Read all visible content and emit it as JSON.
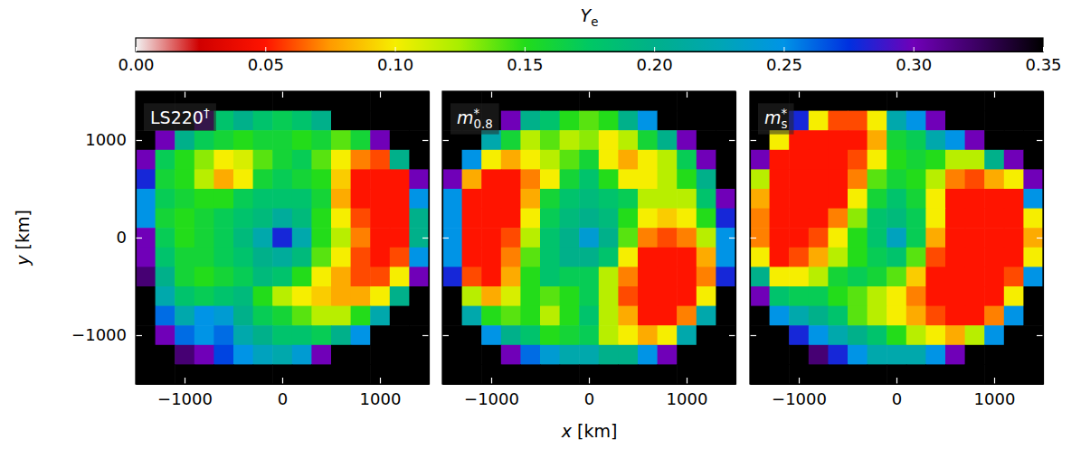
{
  "chart_data": {
    "type": "heatmap",
    "x_label": "x [km]",
    "y_label": "y [km]",
    "xlim": [
      -1500,
      1500
    ],
    "ylim": [
      -1500,
      1500
    ],
    "xticks": [
      {
        "value": -1000,
        "label": "−1000"
      },
      0,
      1000
    ],
    "yticks": [
      {
        "value": -1000,
        "label": "−1000"
      },
      0,
      1000
    ],
    "colorbar": {
      "label": {
        "text": "Y",
        "sub": "e"
      },
      "range": [
        0,
        0.35
      ],
      "ticks": [
        {
          "value": 0,
          "label": "0.00"
        },
        {
          "value": 0.05,
          "label": "0.05"
        },
        {
          "value": 0.1,
          "label": "0.10"
        },
        {
          "value": 0.15,
          "label": "0.15"
        },
        {
          "value": 0.2,
          "label": "0.20"
        },
        {
          "value": 0.25,
          "label": "0.25"
        },
        {
          "value": 0.3,
          "label": "0.30"
        },
        {
          "value": 0.35,
          "label": "0.35"
        }
      ]
    },
    "x": [
      -1400,
      -1200,
      -1000,
      -800,
      -600,
      -400,
      -200,
      0,
      200,
      400,
      600,
      800,
      1000,
      1200,
      1400
    ],
    "y": [
      1400,
      1200,
      1000,
      800,
      600,
      400,
      200,
      0,
      -200,
      -400,
      -600,
      -800,
      -1000,
      -1200,
      -1400
    ],
    "panels": [
      {
        "title": {
          "text": "LS220",
          "sup": "†"
        },
        "cells": [
          [
            0.35,
            0.35,
            0.35,
            0.35,
            0.35,
            0.35,
            0.35,
            0.35,
            0.35,
            0.35,
            0.35,
            0.35,
            0.35,
            0.35,
            0.35
          ],
          [
            0.35,
            0.35,
            0.35,
            0.32,
            0.18,
            0.2,
            0.18,
            0.17,
            0.18,
            0.2,
            0.35,
            0.35,
            0.35,
            0.35,
            0.35
          ],
          [
            0.35,
            0.3,
            0.2,
            0.17,
            0.16,
            0.15,
            0.16,
            0.16,
            0.15,
            0.16,
            0.14,
            0.16,
            0.3,
            0.35,
            0.35
          ],
          [
            0.3,
            0.17,
            0.15,
            0.13,
            0.1,
            0.11,
            0.14,
            0.16,
            0.17,
            0.14,
            0.1,
            0.07,
            0.06,
            0.2,
            0.35
          ],
          [
            0.28,
            0.16,
            0.15,
            0.12,
            0.08,
            0.1,
            0.16,
            0.17,
            0.16,
            0.15,
            0.09,
            0.05,
            0.05,
            0.05,
            0.3
          ],
          [
            0.25,
            0.17,
            0.16,
            0.15,
            0.15,
            0.17,
            0.18,
            0.18,
            0.18,
            0.16,
            0.08,
            0.05,
            0.05,
            0.05,
            0.25
          ],
          [
            0.25,
            0.16,
            0.15,
            0.16,
            0.17,
            0.18,
            0.19,
            0.21,
            0.19,
            0.15,
            0.1,
            0.06,
            0.05,
            0.05,
            0.2
          ],
          [
            0.3,
            0.17,
            0.15,
            0.16,
            0.17,
            0.19,
            0.22,
            0.28,
            0.22,
            0.15,
            0.12,
            0.07,
            0.05,
            0.05,
            0.2
          ],
          [
            0.3,
            0.18,
            0.16,
            0.16,
            0.17,
            0.18,
            0.2,
            0.21,
            0.19,
            0.14,
            0.1,
            0.06,
            0.05,
            0.06,
            0.25
          ],
          [
            0.32,
            0.2,
            0.16,
            0.15,
            0.16,
            0.17,
            0.19,
            0.18,
            0.15,
            0.1,
            0.08,
            0.06,
            0.06,
            0.1,
            0.3
          ],
          [
            0.35,
            0.22,
            0.18,
            0.17,
            0.18,
            0.19,
            0.15,
            0.12,
            0.1,
            0.09,
            0.08,
            0.08,
            0.1,
            0.2,
            0.35
          ],
          [
            0.35,
            0.26,
            0.22,
            0.25,
            0.24,
            0.2,
            0.17,
            0.16,
            0.14,
            0.12,
            0.12,
            0.15,
            0.22,
            0.35,
            0.35
          ],
          [
            0.35,
            0.3,
            0.26,
            0.25,
            0.26,
            0.22,
            0.2,
            0.18,
            0.18,
            0.17,
            0.2,
            0.25,
            0.35,
            0.35,
            0.35
          ],
          [
            0.35,
            0.35,
            0.32,
            0.3,
            0.27,
            0.25,
            0.23,
            0.22,
            0.24,
            0.3,
            0.35,
            0.35,
            0.35,
            0.35,
            0.35
          ],
          [
            0.35,
            0.35,
            0.35,
            0.35,
            0.35,
            0.35,
            0.35,
            0.35,
            0.35,
            0.35,
            0.35,
            0.35,
            0.35,
            0.35,
            0.35
          ]
        ]
      },
      {
        "title": {
          "text": "m",
          "sub": "0.8",
          "sup": "*"
        },
        "tick_labels": "x",
        "cells": [
          [
            0.35,
            0.35,
            0.35,
            0.35,
            0.35,
            0.35,
            0.35,
            0.35,
            0.35,
            0.35,
            0.35,
            0.35,
            0.35,
            0.35,
            0.35
          ],
          [
            0.35,
            0.35,
            0.35,
            0.3,
            0.2,
            0.18,
            0.15,
            0.14,
            0.15,
            0.2,
            0.25,
            0.35,
            0.35,
            0.35,
            0.35
          ],
          [
            0.35,
            0.35,
            0.22,
            0.16,
            0.12,
            0.14,
            0.12,
            0.13,
            0.1,
            0.12,
            0.16,
            0.2,
            0.3,
            0.35,
            0.35
          ],
          [
            0.35,
            0.25,
            0.1,
            0.08,
            0.1,
            0.12,
            0.14,
            0.16,
            0.1,
            0.08,
            0.1,
            0.12,
            0.17,
            0.3,
            0.35
          ],
          [
            0.3,
            0.08,
            0.05,
            0.05,
            0.07,
            0.1,
            0.16,
            0.18,
            0.15,
            0.1,
            0.1,
            0.12,
            0.15,
            0.2,
            0.35
          ],
          [
            0.25,
            0.05,
            0.05,
            0.05,
            0.08,
            0.16,
            0.18,
            0.19,
            0.18,
            0.17,
            0.12,
            0.12,
            0.12,
            0.18,
            0.3
          ],
          [
            0.25,
            0.05,
            0.05,
            0.05,
            0.1,
            0.17,
            0.19,
            0.2,
            0.19,
            0.15,
            0.1,
            0.09,
            0.1,
            0.15,
            0.28
          ],
          [
            0.25,
            0.05,
            0.05,
            0.06,
            0.12,
            0.18,
            0.2,
            0.24,
            0.2,
            0.14,
            0.07,
            0.06,
            0.07,
            0.12,
            0.25
          ],
          [
            0.25,
            0.05,
            0.05,
            0.07,
            0.14,
            0.18,
            0.2,
            0.2,
            0.18,
            0.1,
            0.05,
            0.05,
            0.05,
            0.08,
            0.25
          ],
          [
            0.28,
            0.06,
            0.05,
            0.08,
            0.15,
            0.18,
            0.17,
            0.17,
            0.12,
            0.07,
            0.05,
            0.05,
            0.05,
            0.07,
            0.28
          ],
          [
            0.35,
            0.12,
            0.08,
            0.11,
            0.15,
            0.14,
            0.15,
            0.17,
            0.12,
            0.06,
            0.05,
            0.05,
            0.05,
            0.1,
            0.35
          ],
          [
            0.35,
            0.22,
            0.15,
            0.14,
            0.15,
            0.12,
            0.15,
            0.18,
            0.12,
            0.08,
            0.05,
            0.05,
            0.07,
            0.22,
            0.35
          ],
          [
            0.35,
            0.35,
            0.25,
            0.2,
            0.18,
            0.15,
            0.16,
            0.17,
            0.12,
            0.1,
            0.08,
            0.1,
            0.22,
            0.35,
            0.35
          ],
          [
            0.35,
            0.35,
            0.35,
            0.3,
            0.26,
            0.24,
            0.22,
            0.22,
            0.2,
            0.2,
            0.25,
            0.3,
            0.35,
            0.35,
            0.35
          ],
          [
            0.35,
            0.35,
            0.35,
            0.35,
            0.35,
            0.35,
            0.35,
            0.35,
            0.35,
            0.35,
            0.35,
            0.35,
            0.35,
            0.35,
            0.35
          ]
        ]
      },
      {
        "title": {
          "text": "m",
          "sub": "s",
          "sup": "*"
        },
        "tick_labels": "x",
        "cells": [
          [
            0.35,
            0.35,
            0.35,
            0.35,
            0.35,
            0.35,
            0.35,
            0.35,
            0.35,
            0.35,
            0.35,
            0.35,
            0.35,
            0.35,
            0.35
          ],
          [
            0.35,
            0.35,
            0.28,
            0.1,
            0.06,
            0.06,
            0.1,
            0.22,
            0.25,
            0.3,
            0.35,
            0.35,
            0.35,
            0.35,
            0.35
          ],
          [
            0.35,
            0.1,
            0.05,
            0.05,
            0.05,
            0.05,
            0.08,
            0.16,
            0.17,
            0.22,
            0.25,
            0.3,
            0.35,
            0.35,
            0.35
          ],
          [
            0.3,
            0.05,
            0.05,
            0.05,
            0.05,
            0.06,
            0.1,
            0.15,
            0.16,
            0.15,
            0.12,
            0.12,
            0.2,
            0.3,
            0.35
          ],
          [
            0.12,
            0.05,
            0.05,
            0.05,
            0.05,
            0.07,
            0.14,
            0.16,
            0.15,
            0.12,
            0.07,
            0.06,
            0.08,
            0.1,
            0.3
          ],
          [
            0.08,
            0.05,
            0.05,
            0.05,
            0.05,
            0.1,
            0.16,
            0.18,
            0.16,
            0.1,
            0.05,
            0.05,
            0.05,
            0.05,
            0.25
          ],
          [
            0.07,
            0.05,
            0.05,
            0.05,
            0.07,
            0.13,
            0.18,
            0.19,
            0.17,
            0.1,
            0.05,
            0.05,
            0.05,
            0.05,
            0.1
          ],
          [
            0.07,
            0.05,
            0.05,
            0.06,
            0.1,
            0.15,
            0.18,
            0.23,
            0.17,
            0.08,
            0.05,
            0.05,
            0.05,
            0.05,
            0.08
          ],
          [
            0.1,
            0.05,
            0.06,
            0.08,
            0.12,
            0.15,
            0.17,
            0.18,
            0.14,
            0.06,
            0.05,
            0.05,
            0.05,
            0.05,
            0.1
          ],
          [
            0.2,
            0.1,
            0.1,
            0.12,
            0.16,
            0.17,
            0.16,
            0.14,
            0.09,
            0.05,
            0.05,
            0.05,
            0.05,
            0.06,
            0.25
          ],
          [
            0.3,
            0.18,
            0.17,
            0.17,
            0.15,
            0.14,
            0.12,
            0.1,
            0.07,
            0.05,
            0.05,
            0.05,
            0.05,
            0.1,
            0.35
          ],
          [
            0.35,
            0.25,
            0.22,
            0.2,
            0.18,
            0.14,
            0.12,
            0.1,
            0.08,
            0.06,
            0.05,
            0.05,
            0.07,
            0.25,
            0.35
          ],
          [
            0.35,
            0.35,
            0.28,
            0.25,
            0.22,
            0.2,
            0.18,
            0.15,
            0.12,
            0.1,
            0.08,
            0.12,
            0.25,
            0.35,
            0.35
          ],
          [
            0.35,
            0.35,
            0.35,
            0.32,
            0.28,
            0.25,
            0.22,
            0.22,
            0.22,
            0.25,
            0.3,
            0.35,
            0.35,
            0.35,
            0.35
          ],
          [
            0.35,
            0.35,
            0.35,
            0.35,
            0.35,
            0.35,
            0.35,
            0.35,
            0.35,
            0.35,
            0.35,
            0.35,
            0.35,
            0.35,
            0.35
          ]
        ]
      }
    ]
  }
}
